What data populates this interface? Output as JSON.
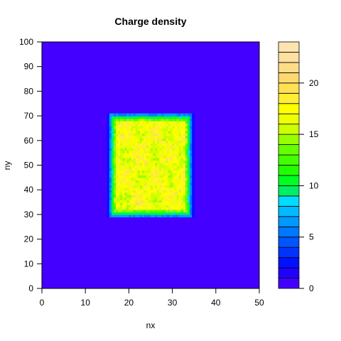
{
  "chart_data": {
    "type": "heatmap",
    "title": "Charge density",
    "xlabel": "nx",
    "ylabel": "ny",
    "xlim": [
      0,
      50
    ],
    "ylim": [
      0,
      100
    ],
    "x_ticks": [
      0,
      10,
      20,
      30,
      40,
      50
    ],
    "y_ticks": [
      0,
      10,
      20,
      30,
      40,
      50,
      60,
      70,
      80,
      90,
      100
    ],
    "background_value": 0,
    "region": {
      "x_range": [
        16,
        34
      ],
      "y_range": [
        30,
        70
      ],
      "typical_value_range": [
        14,
        20
      ]
    },
    "colorbar": {
      "min": 0,
      "max": 24,
      "ticks": [
        0,
        5,
        10,
        15,
        20
      ],
      "levels": [
        0,
        1,
        2,
        3,
        4,
        5,
        6,
        7,
        8,
        9,
        10,
        11,
        12,
        13,
        14,
        15,
        16,
        17,
        18,
        19,
        20,
        21,
        22,
        23,
        24
      ],
      "colors": [
        "#4400ff",
        "#2200ff",
        "#0011ff",
        "#0033ff",
        "#0055ff",
        "#0077ff",
        "#0099ff",
        "#00bbff",
        "#00ddff",
        "#00ee66",
        "#00ff22",
        "#22ff00",
        "#44ff00",
        "#66ff00",
        "#99ff00",
        "#ccff00",
        "#eeff00",
        "#ffff00",
        "#ffee33",
        "#ffe055",
        "#ffd870",
        "#ffdd88",
        "#ffe0a0",
        "#ffe4b0"
      ]
    },
    "grid": false
  }
}
